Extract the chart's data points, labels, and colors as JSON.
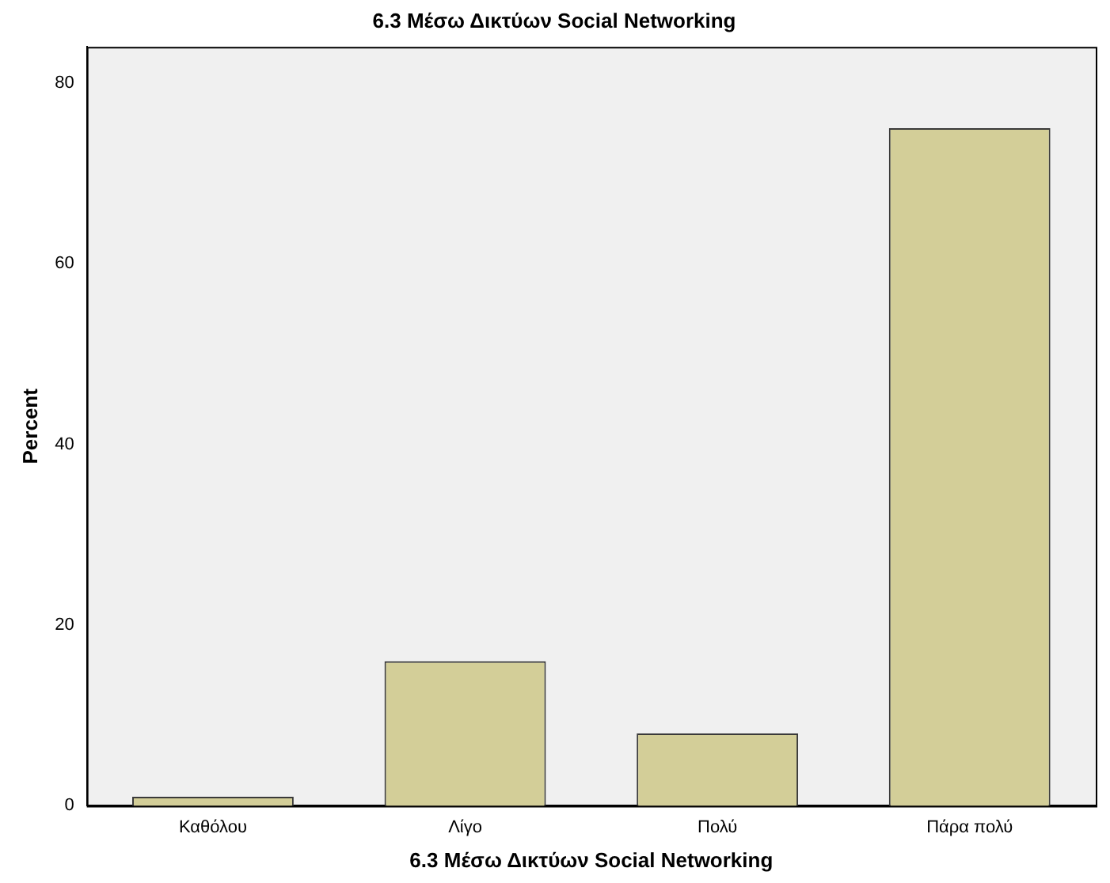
{
  "chart_data": {
    "type": "bar",
    "title": "6.3 Μέσω Δικτύων Social Networking",
    "xlabel": "6.3 Μέσω Δικτύων Social Networking",
    "ylabel": "Percent",
    "categories": [
      "Καθόλου",
      "Λίγο",
      "Πολύ",
      "Πάρα πολύ"
    ],
    "values": [
      1,
      16,
      8,
      75
    ],
    "color": "#d3ce98",
    "ylim": [
      0,
      84
    ],
    "yticks": [
      0,
      20,
      40,
      60,
      80
    ],
    "grid": false,
    "legend": false
  }
}
